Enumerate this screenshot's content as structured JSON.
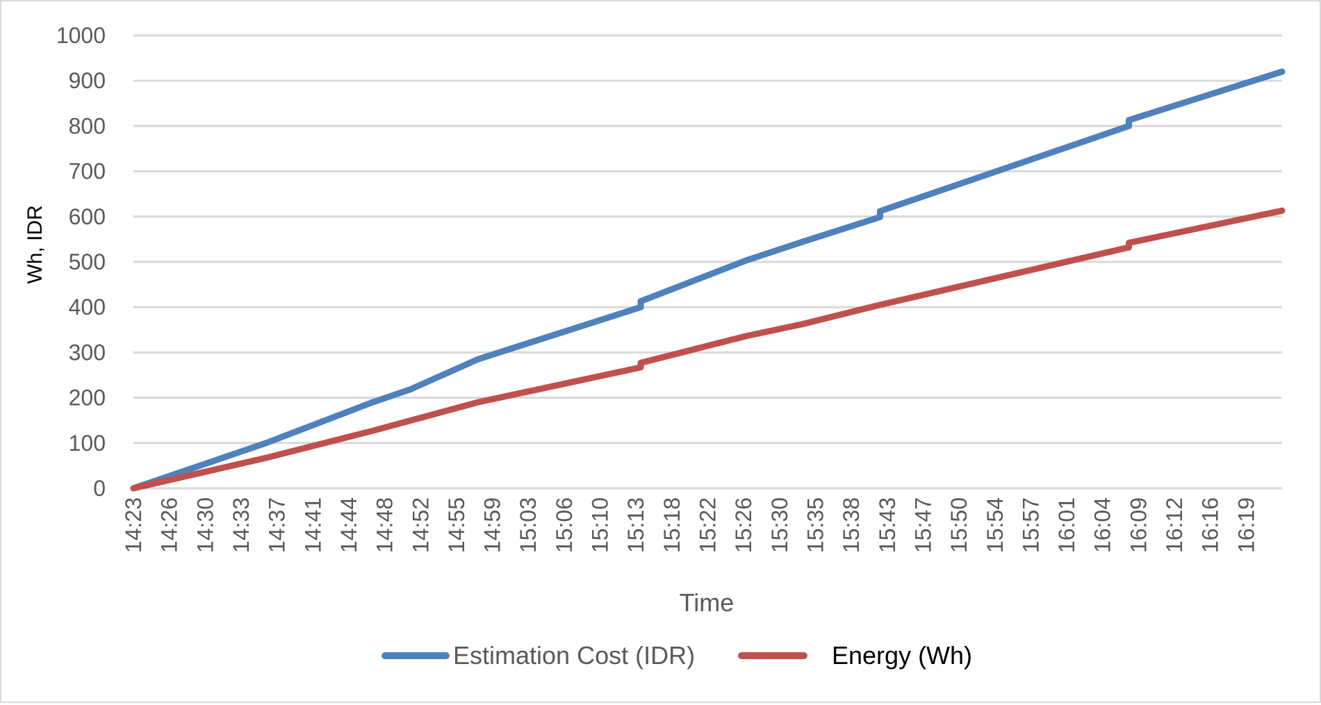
{
  "chart_data": {
    "type": "line",
    "title": "",
    "xlabel": "Time",
    "ylabel": "Wh, IDR",
    "ylim": [
      0,
      1000
    ],
    "yticks": [
      0,
      100,
      200,
      300,
      400,
      500,
      600,
      700,
      800,
      900,
      1000
    ],
    "grid": true,
    "legend_position": "bottom",
    "x_tick_labels": [
      "14:23",
      "14:26",
      "14:30",
      "14:33",
      "14:37",
      "14:41",
      "14:44",
      "14:48",
      "14:52",
      "14:55",
      "14:59",
      "15:03",
      "15:06",
      "15:10",
      "15:13",
      "15:18",
      "15:22",
      "15:26",
      "15:30",
      "15:35",
      "15:38",
      "15:43",
      "15:47",
      "15:50",
      "15:54",
      "15:57",
      "16:01",
      "16:04",
      "16:09",
      "16:12",
      "16:16",
      "16:19"
    ],
    "x_range": [
      "14:23",
      "16:23"
    ],
    "series": [
      {
        "name": "Estimation Cost (IDR)",
        "color": "#4f81bd",
        "x": [
          "14:23",
          "14:37",
          "14:48",
          "14:52",
          "14:59",
          "15:16",
          "15:16",
          "15:27",
          "15:33",
          "15:41",
          "15:41",
          "16:07",
          "16:07",
          "16:23"
        ],
        "values": [
          0,
          101,
          190,
          219,
          285,
          400,
          413,
          503,
          545,
          599,
          612,
          800,
          813,
          920
        ]
      },
      {
        "name": "Energy (Wh)",
        "color": "#c0504d",
        "x": [
          "14:23",
          "14:37",
          "14:48",
          "14:59",
          "15:16",
          "15:16",
          "15:27",
          "15:33",
          "15:41",
          "16:07",
          "16:07",
          "16:23"
        ],
        "values": [
          0,
          68,
          127,
          190,
          267,
          277,
          336,
          363,
          405,
          532,
          542,
          613
        ]
      }
    ]
  }
}
